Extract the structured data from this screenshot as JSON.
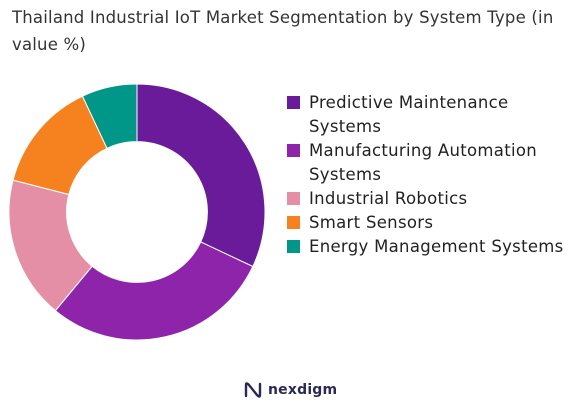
{
  "chart_data": {
    "type": "pie",
    "title": "Thailand Industrial IoT Market Segmentation by System Type (in value %)",
    "categories": [
      "Predictive Maintenance Systems",
      "Manufacturing Automation Systems",
      "Industrial Robotics",
      "Smart Sensors",
      "Energy Management Systems"
    ],
    "values": [
      32,
      29,
      18,
      14,
      7
    ],
    "colors": [
      "#6a1b9a",
      "#8e24aa",
      "#e58fa6",
      "#f6821f",
      "#009688"
    ],
    "legend_position": "right",
    "hole": 0.55
  },
  "brand": {
    "name": "nexdigm"
  }
}
